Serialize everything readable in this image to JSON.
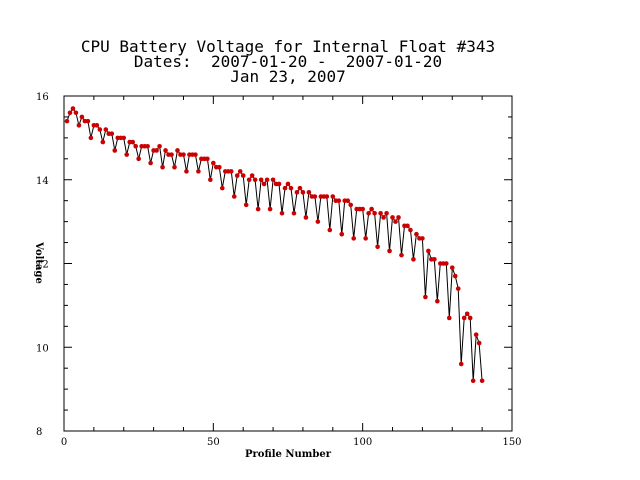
{
  "chart_data": {
    "type": "line",
    "title": "CPU Battery Voltage for Internal Float #343",
    "subtitle_lines": [
      "Dates:  2007-01-20 -  2007-01-20",
      "Jan 23, 2007"
    ],
    "xlabel": "Profile Number",
    "ylabel": "Voltage",
    "xlim": [
      0,
      150
    ],
    "ylim": [
      8,
      16
    ],
    "x_ticks": [
      "0",
      "50",
      "100",
      "150"
    ],
    "y_ticks": [
      "8",
      "10",
      "12",
      "14",
      "16"
    ],
    "grid": false,
    "colors": {
      "line": "#000000",
      "marker": "#cc0000"
    },
    "series": [
      {
        "x": [
          1,
          2,
          3,
          4,
          5,
          6,
          7,
          8,
          9,
          10,
          11,
          12,
          13,
          14,
          15,
          16,
          17,
          18,
          19,
          20,
          21,
          22,
          23,
          24,
          25,
          26,
          27,
          28,
          29,
          30,
          31,
          32,
          33,
          34,
          35,
          36,
          37,
          38,
          39,
          40,
          41,
          42,
          43,
          44,
          45,
          46,
          47,
          48,
          49,
          50,
          51,
          52,
          53,
          54,
          55,
          56,
          57,
          58,
          59,
          60,
          61,
          62,
          63,
          64,
          65,
          66,
          67,
          68,
          69,
          70,
          71,
          72,
          73,
          74,
          75,
          76,
          77,
          78,
          79,
          80,
          81,
          82,
          83,
          84,
          85,
          86,
          87,
          88,
          89,
          90,
          91,
          92,
          93,
          94,
          95,
          96,
          97,
          98,
          99,
          100,
          101,
          102,
          103,
          104,
          105,
          106,
          107,
          108,
          109,
          110,
          111,
          112,
          113,
          114,
          115,
          116,
          117,
          118,
          119,
          120,
          121,
          122,
          123,
          124,
          125,
          126,
          127,
          128,
          129,
          130,
          131,
          132,
          133,
          134,
          135,
          136,
          137,
          138,
          139,
          140
        ],
        "y": [
          15.4,
          15.6,
          15.7,
          15.6,
          15.3,
          15.5,
          15.4,
          15.4,
          15.0,
          15.3,
          15.3,
          15.2,
          14.9,
          15.2,
          15.1,
          15.1,
          14.7,
          15.0,
          15.0,
          15.0,
          14.6,
          14.9,
          14.9,
          14.8,
          14.5,
          14.8,
          14.8,
          14.8,
          14.4,
          14.7,
          14.7,
          14.8,
          14.3,
          14.7,
          14.6,
          14.6,
          14.3,
          14.7,
          14.6,
          14.6,
          14.2,
          14.6,
          14.6,
          14.6,
          14.2,
          14.5,
          14.5,
          14.5,
          14.0,
          14.4,
          14.3,
          14.3,
          13.8,
          14.2,
          14.2,
          14.2,
          13.6,
          14.1,
          14.2,
          14.1,
          13.4,
          14.0,
          14.1,
          14.0,
          13.3,
          14.0,
          13.9,
          14.0,
          13.3,
          14.0,
          13.9,
          13.9,
          13.2,
          13.8,
          13.9,
          13.8,
          13.2,
          13.7,
          13.8,
          13.7,
          13.1,
          13.7,
          13.6,
          13.6,
          13.0,
          13.6,
          13.6,
          13.6,
          12.8,
          13.6,
          13.5,
          13.5,
          12.7,
          13.5,
          13.5,
          13.4,
          12.6,
          13.3,
          13.3,
          13.3,
          12.6,
          13.2,
          13.3,
          13.2,
          12.4,
          13.2,
          13.1,
          13.2,
          12.3,
          13.1,
          13.0,
          13.1,
          12.2,
          12.9,
          12.9,
          12.8,
          12.1,
          12.7,
          12.6,
          12.6,
          11.2,
          12.3,
          12.1,
          12.1,
          11.1,
          12.0,
          12.0,
          12.0,
          10.7,
          11.9,
          11.7,
          11.4,
          9.6,
          10.7,
          10.8,
          10.7,
          9.2,
          10.3,
          10.1,
          9.2
        ]
      }
    ]
  }
}
